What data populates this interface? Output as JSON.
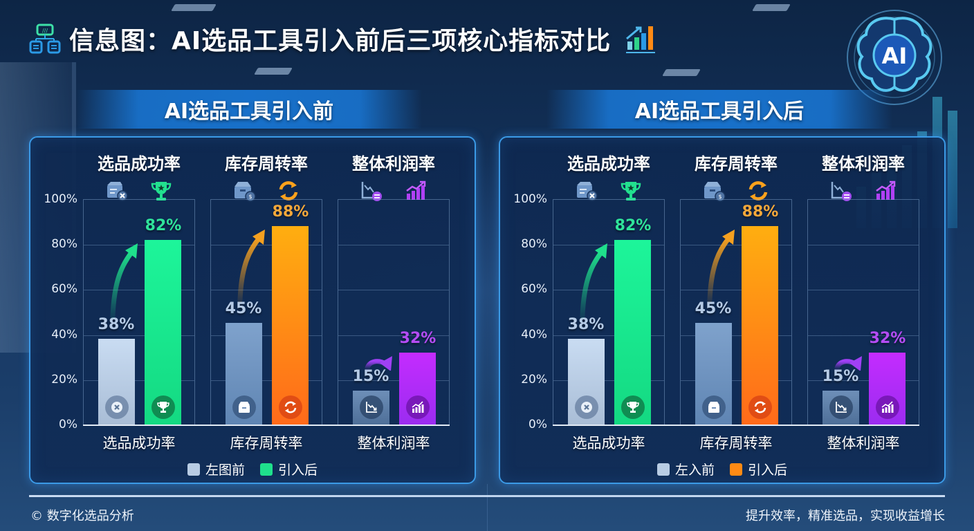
{
  "header": {
    "title": "信息图：AI选品工具引入前后三项核心指标对比",
    "left_icon": "flowchart-icon",
    "right_icon": "growth-bar-chart-icon",
    "badge_text": "AI"
  },
  "colors": {
    "before": "#b8cce4",
    "success_after": "#1fe08c",
    "turnover_after": "#ff8a14",
    "profit_after": "#a73cf5",
    "panel_border": "#3b9ae6",
    "banner": "#1978d7"
  },
  "panels": [
    {
      "banner": "AI选品工具引入前",
      "y_ticks": [
        "100%",
        "80%",
        "60%",
        "40%",
        "20%",
        "0%"
      ],
      "metrics": [
        {
          "name": "选品成功率",
          "before": 38,
          "after": 82,
          "before_label": "38%",
          "after_label": "82%",
          "icons": [
            "box-x-icon",
            "trophy-icon"
          ]
        },
        {
          "name": "库存周转率",
          "before": 45,
          "after": 88,
          "before_label": "45%",
          "after_label": "88%",
          "icons": [
            "package-icon",
            "refresh-icon"
          ]
        },
        {
          "name": "整体利润率",
          "before": 15,
          "after": 32,
          "before_label": "15%",
          "after_label": "32%",
          "icons": [
            "trend-down-icon",
            "trend-up-bars-icon"
          ]
        }
      ],
      "legend": [
        {
          "label": "左图前",
          "color": "#b8cce4"
        },
        {
          "label": "引入后",
          "color": "#1fe08c"
        }
      ]
    },
    {
      "banner": "AI选品工具引入后",
      "y_ticks": [
        "100%",
        "80%",
        "60%",
        "40%",
        "20%",
        "0%"
      ],
      "metrics": [
        {
          "name": "选品成功率",
          "before": 38,
          "after": 82,
          "before_label": "38%",
          "after_label": "82%",
          "icons": [
            "box-x-icon",
            "trophy-icon"
          ]
        },
        {
          "name": "库存周转率",
          "before": 45,
          "after": 88,
          "before_label": "45%",
          "after_label": "88%",
          "icons": [
            "package-icon",
            "refresh-icon"
          ]
        },
        {
          "name": "整体利润率",
          "before": 15,
          "after": 32,
          "before_label": "15%",
          "after_label": "32%",
          "icons": [
            "trend-down-icon",
            "trend-up-bars-icon"
          ]
        }
      ],
      "legend": [
        {
          "label": "左入前",
          "color": "#b8cce4"
        },
        {
          "label": "引入后",
          "color": "#ff8a14"
        }
      ]
    }
  ],
  "footer": {
    "left": "© 数字化选品分析",
    "right": "提升效率，精准选品，实现收益增长"
  },
  "chart_data": [
    {
      "type": "bar",
      "title": "AI选品工具引入前",
      "categories": [
        "选品成功率",
        "库存周转率",
        "整体利润率"
      ],
      "series": [
        {
          "name": "左图前",
          "values": [
            38,
            45,
            15
          ]
        },
        {
          "name": "引入后",
          "values": [
            82,
            88,
            32
          ]
        }
      ],
      "xlabel": "",
      "ylabel": "",
      "ylim": [
        0,
        100
      ],
      "y_ticks": [
        "0%",
        "20%",
        "40%",
        "60%",
        "80%",
        "100%"
      ],
      "grid": true,
      "legend_position": "bottom"
    },
    {
      "type": "bar",
      "title": "AI选品工具引入后",
      "categories": [
        "选品成功率",
        "库存周转率",
        "整体利润率"
      ],
      "series": [
        {
          "name": "左入前",
          "values": [
            38,
            45,
            15
          ]
        },
        {
          "name": "引入后",
          "values": [
            82,
            88,
            32
          ]
        }
      ],
      "xlabel": "",
      "ylabel": "",
      "ylim": [
        0,
        100
      ],
      "y_ticks": [
        "0%",
        "20%",
        "40%",
        "60%",
        "80%",
        "100%"
      ],
      "grid": true,
      "legend_position": "bottom"
    }
  ]
}
